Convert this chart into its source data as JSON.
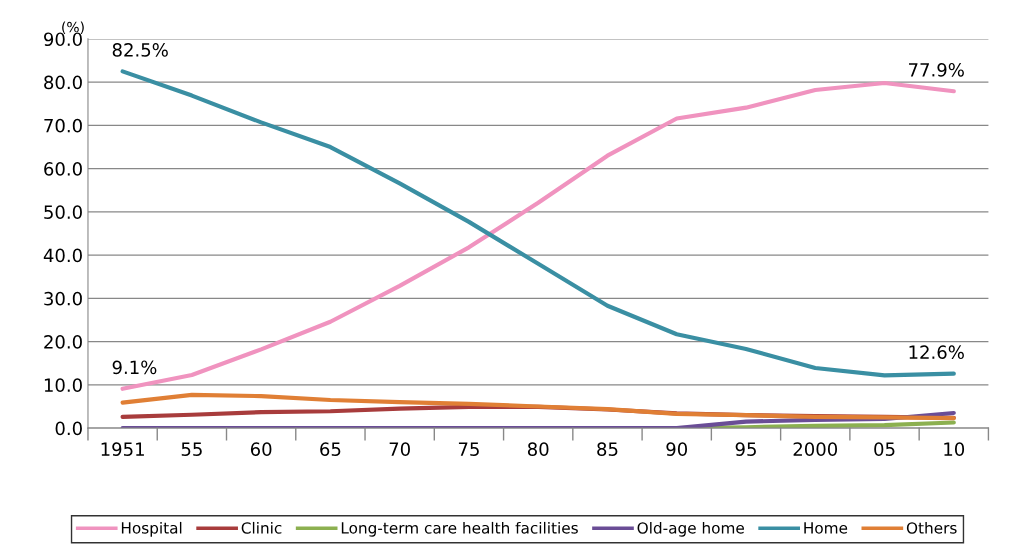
{
  "chart_data": {
    "type": "line",
    "ylabel": "(%)",
    "categories": [
      "1951",
      "55",
      "60",
      "65",
      "70",
      "75",
      "80",
      "85",
      "90",
      "95",
      "2000",
      "05",
      "10"
    ],
    "series": [
      {
        "name": "Hospital",
        "color": "#f093bf",
        "values": [
          9.1,
          12.3,
          18.2,
          24.6,
          32.9,
          41.8,
          52.1,
          63.0,
          71.6,
          74.1,
          78.2,
          79.8,
          77.9
        ]
      },
      {
        "name": "Clinic",
        "color": "#a83c3c",
        "values": [
          2.6,
          3.1,
          3.7,
          3.9,
          4.5,
          4.9,
          4.9,
          4.3,
          3.4,
          3.0,
          2.8,
          2.6,
          2.4
        ]
      },
      {
        "name": "Long-term care health facilities",
        "color": "#8cb050",
        "values": [
          null,
          null,
          null,
          null,
          null,
          null,
          null,
          null,
          0.0,
          0.2,
          0.5,
          0.7,
          1.3
        ]
      },
      {
        "name": "Old-age home",
        "color": "#6a4d96",
        "values": [
          0.0,
          0.0,
          0.0,
          0.0,
          0.0,
          0.0,
          0.0,
          0.0,
          0.0,
          1.5,
          1.9,
          2.1,
          3.5
        ]
      },
      {
        "name": "Home",
        "color": "#3a8fa3",
        "values": [
          82.5,
          76.9,
          70.7,
          65.0,
          56.6,
          47.7,
          38.0,
          28.3,
          21.7,
          18.3,
          13.9,
          12.2,
          12.6
        ]
      },
      {
        "name": "Others",
        "color": "#e07f35",
        "values": [
          5.9,
          7.7,
          7.4,
          6.5,
          6.0,
          5.6,
          5.0,
          4.4,
          3.3,
          3.0,
          2.6,
          2.5,
          2.3
        ]
      }
    ],
    "ylim": [
      0,
      90
    ],
    "yticks": [
      {
        "value": 0,
        "label": "0.0"
      },
      {
        "value": 10,
        "label": "10.0"
      },
      {
        "value": 20,
        "label": "20.0"
      },
      {
        "value": 30,
        "label": "30.0"
      },
      {
        "value": 40,
        "label": "40.0"
      },
      {
        "value": 50,
        "label": "50.0"
      },
      {
        "value": 60,
        "label": "60.0"
      },
      {
        "value": 70,
        "label": "70.0"
      },
      {
        "value": 80,
        "label": "80.0"
      },
      {
        "value": 90,
        "label": "90.0"
      }
    ],
    "grid": "y",
    "legend": "bottom",
    "marker": "none",
    "line_style": "solid",
    "annotations": [
      {
        "text": "82.5%",
        "x": "1951",
        "y": 82.5
      },
      {
        "text": "9.1%",
        "x": "1951",
        "y": 9.1
      },
      {
        "text": "77.9%",
        "x": "10",
        "y": 77.9
      },
      {
        "text": "12.6%",
        "x": "10",
        "y": 12.6
      }
    ]
  }
}
